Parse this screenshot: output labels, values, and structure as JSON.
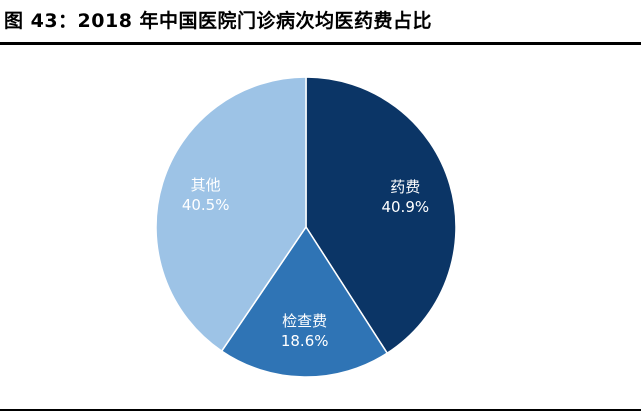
{
  "title": "图 43：2018 年中国医院门诊病次均医药费占比",
  "chart_data": {
    "type": "pie",
    "categories": [
      "药费",
      "检查费",
      "其他"
    ],
    "values": [
      40.9,
      18.6,
      40.5
    ],
    "value_labels": [
      "40.9%",
      "18.6%",
      "40.5%"
    ],
    "colors": [
      "#0B3566",
      "#2F74B5",
      "#9DC3E6"
    ],
    "start_angle_deg": 0,
    "direction": "clockwise",
    "legend": "none"
  }
}
